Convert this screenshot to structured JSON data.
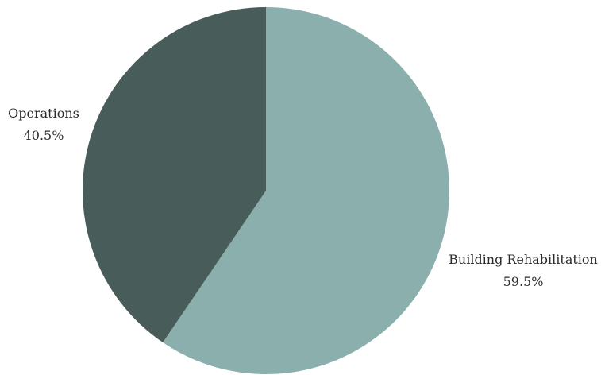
{
  "chart_data": {
    "type": "pie",
    "title": "",
    "slices": [
      {
        "label": "Building Rehabilitation",
        "value": 59.5,
        "display_value": "59.5%",
        "color": "#8aafad"
      },
      {
        "label": "Operations",
        "value": 40.5,
        "display_value": "40.5%",
        "color": "#485c5a"
      }
    ],
    "start_angle": "12 o'clock",
    "direction": "clockwise",
    "legend": "none",
    "label_position": "outside"
  }
}
